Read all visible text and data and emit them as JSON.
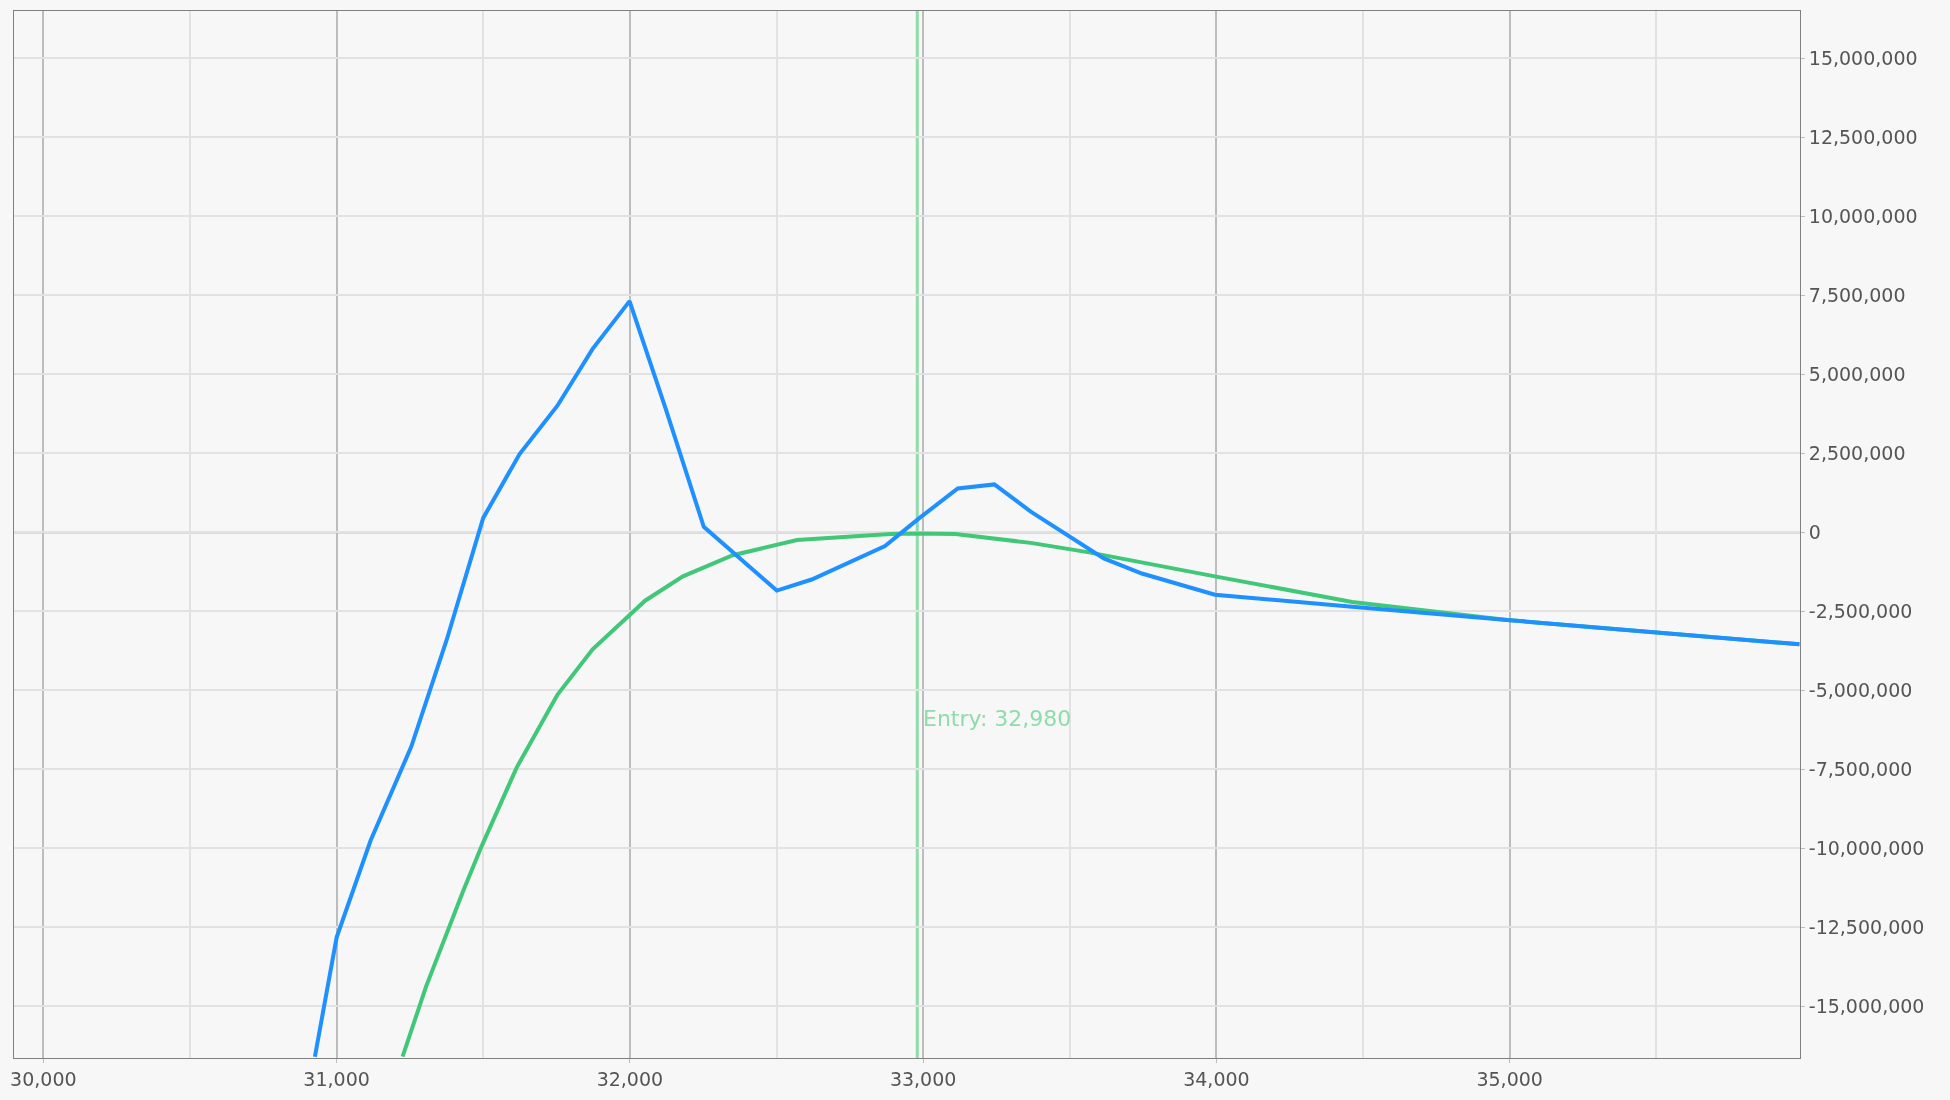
{
  "chart_data": {
    "type": "line",
    "xlim": [
      29900,
      35990
    ],
    "ylim": [
      -16640000,
      16490000
    ],
    "xticks": [
      {
        "value": 30000,
        "label": "30,000"
      },
      {
        "value": 31000,
        "label": "31,000"
      },
      {
        "value": 32000,
        "label": "32,000"
      },
      {
        "value": 33000,
        "label": "33,000"
      },
      {
        "value": 34000,
        "label": "34,000"
      },
      {
        "value": 35000,
        "label": "35,000"
      }
    ],
    "yticks": [
      {
        "value": 15000000,
        "label": "15,000,000"
      },
      {
        "value": 12500000,
        "label": "12,500,000"
      },
      {
        "value": 10000000,
        "label": "10,000,000"
      },
      {
        "value": 7500000,
        "label": "7,500,000"
      },
      {
        "value": 5000000,
        "label": "5,000,000"
      },
      {
        "value": 2500000,
        "label": "2,500,000"
      },
      {
        "value": 0,
        "label": "0"
      },
      {
        "value": -2500000,
        "label": "-2,500,000"
      },
      {
        "value": -5000000,
        "label": "-5,000,000"
      },
      {
        "value": -7500000,
        "label": "-7,500,000"
      },
      {
        "value": -10000000,
        "label": "-10,000,000"
      },
      {
        "value": -12500000,
        "label": "-12,500,000"
      },
      {
        "value": -15000000,
        "label": "-15,000,000"
      }
    ],
    "grid": true,
    "marker": "none",
    "line_style": "solid",
    "ref_lines": [
      {
        "axis": "x",
        "value": 32980,
        "label": "Entry: 32,980",
        "color": "#8fdcaa"
      },
      {
        "axis": "y",
        "value": 0,
        "color": "#5aa585"
      }
    ],
    "series": [
      {
        "color": "#1e90ff",
        "x": [
          30926,
          31000,
          31116,
          31255,
          31375,
          31500,
          31624,
          31753,
          31873,
          31999,
          32122,
          32252,
          32501,
          32620,
          32870,
          32988,
          33118,
          33243,
          33367,
          33616,
          33746,
          33995,
          34463,
          34991,
          35988
        ],
        "values": [
          -16600000,
          -12830000,
          -9760000,
          -6780000,
          -3420000,
          450000,
          2470000,
          4000000,
          5800000,
          7310000,
          3910000,
          170000,
          -1850000,
          -1500000,
          -440000,
          450000,
          1380000,
          1510000,
          650000,
          -830000,
          -1310000,
          -1980000,
          -2360000,
          -2780000,
          -3550000
        ]
      },
      {
        "color": "#40c878",
        "x": [
          31225,
          31305,
          31434,
          31494,
          31614,
          31753,
          31873,
          32052,
          32181,
          32351,
          32570,
          32889,
          32988,
          33110,
          33367,
          33566,
          33995,
          34463,
          34991,
          35988
        ],
        "values": [
          -16600000,
          -14380000,
          -11300000,
          -9950000,
          -7450000,
          -5150000,
          -3710000,
          -2170000,
          -1400000,
          -730000,
          -250000,
          -60000,
          -40000,
          -60000,
          -340000,
          -640000,
          -1400000,
          -2210000,
          -2780000,
          -3550000
        ]
      }
    ]
  }
}
